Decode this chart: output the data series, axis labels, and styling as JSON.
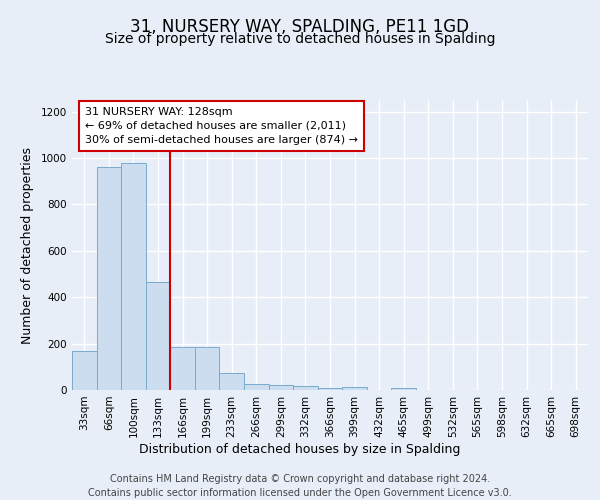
{
  "title": "31, NURSERY WAY, SPALDING, PE11 1GD",
  "subtitle": "Size of property relative to detached houses in Spalding",
  "xlabel": "Distribution of detached houses by size in Spalding",
  "ylabel": "Number of detached properties",
  "categories": [
    "33sqm",
    "66sqm",
    "100sqm",
    "133sqm",
    "166sqm",
    "199sqm",
    "233sqm",
    "266sqm",
    "299sqm",
    "332sqm",
    "366sqm",
    "399sqm",
    "432sqm",
    "465sqm",
    "499sqm",
    "532sqm",
    "565sqm",
    "598sqm",
    "632sqm",
    "665sqm",
    "698sqm"
  ],
  "values": [
    170,
    960,
    980,
    465,
    185,
    185,
    75,
    25,
    22,
    18,
    10,
    15,
    0,
    10,
    0,
    0,
    0,
    0,
    0,
    0,
    0
  ],
  "bar_color": "#ccddf0",
  "bar_edge_color": "#7aabcc",
  "red_line_x": 3.5,
  "red_line_color": "#cc0000",
  "annotation_text": "31 NURSERY WAY: 128sqm\n← 69% of detached houses are smaller (2,011)\n30% of semi-detached houses are larger (874) →",
  "annotation_box_facecolor": "#ffffff",
  "annotation_box_edgecolor": "#cc0000",
  "ylim": [
    0,
    1250
  ],
  "yticks": [
    0,
    200,
    400,
    600,
    800,
    1000,
    1200
  ],
  "background_color": "#e8eef8",
  "grid_color": "#ffffff",
  "title_fontsize": 12,
  "subtitle_fontsize": 10,
  "axis_label_fontsize": 9,
  "tick_fontsize": 7.5,
  "annotation_fontsize": 8,
  "footer_fontsize": 7,
  "footer_text": "Contains HM Land Registry data © Crown copyright and database right 2024.\nContains public sector information licensed under the Open Government Licence v3.0."
}
